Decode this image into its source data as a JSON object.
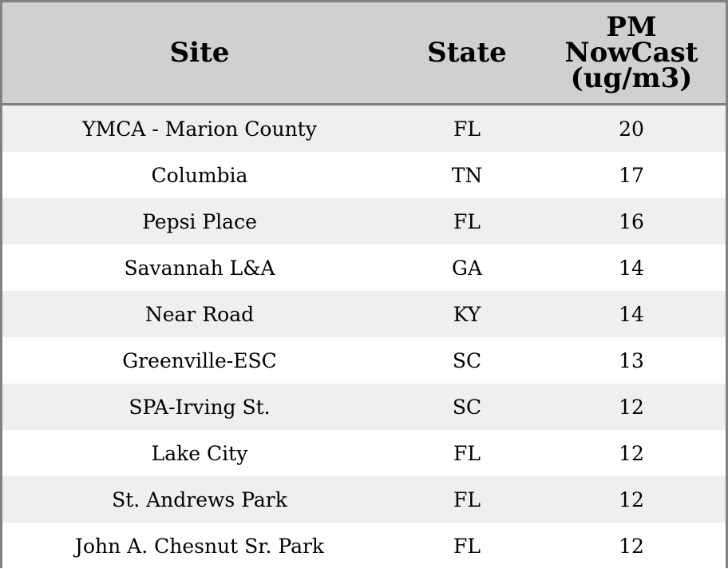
{
  "table": {
    "headers": {
      "site": "Site",
      "state": "State",
      "pm_line1": "PM",
      "pm_line2": "NowCast",
      "pm_line3": "(ug/m3)"
    },
    "rows": [
      {
        "site": "YMCA - Marion County",
        "state": "FL",
        "pm": "20"
      },
      {
        "site": "Columbia",
        "state": "TN",
        "pm": "17"
      },
      {
        "site": "Pepsi Place",
        "state": "FL",
        "pm": "16"
      },
      {
        "site": "Savannah L&A",
        "state": "GA",
        "pm": "14"
      },
      {
        "site": "Near Road",
        "state": "KY",
        "pm": "14"
      },
      {
        "site": "Greenville-ESC",
        "state": "SC",
        "pm": "13"
      },
      {
        "site": "SPA-Irving St.",
        "state": "SC",
        "pm": "12"
      },
      {
        "site": "Lake City",
        "state": "FL",
        "pm": "12"
      },
      {
        "site": "St. Andrews Park",
        "state": "FL",
        "pm": "12"
      },
      {
        "site": "John A. Chesnut Sr. Park",
        "state": "FL",
        "pm": "12"
      }
    ]
  },
  "colors": {
    "header_bg": "#d0d0d0",
    "row_alt_bg": "#efefef",
    "row_bg": "#ffffff",
    "border": "#808080"
  }
}
